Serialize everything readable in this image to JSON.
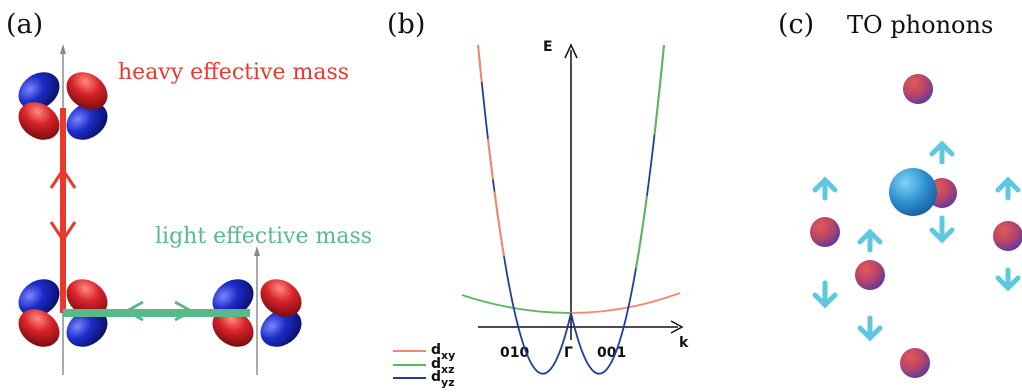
{
  "panel_a": {
    "label": "(a)",
    "heavy_text": "heavy effective mass",
    "light_text": "light effective mass",
    "colors": {
      "heavy": "#e8392b",
      "light": "#5ab98a",
      "lobe_red": "#d8242a",
      "lobe_blue": "#1c2cc8"
    }
  },
  "panel_b": {
    "label": "(b)",
    "axis_e": "E",
    "axis_k": "k",
    "tick_left": "010",
    "tick_center": "Γ",
    "tick_right": "001",
    "legend": [
      {
        "base": "d",
        "sub": "xy",
        "color": "#f08a6c"
      },
      {
        "base": "d",
        "sub": "xz",
        "color": "#5cb85c"
      },
      {
        "base": "d",
        "sub": "yz",
        "color": "#1f3f9e"
      }
    ]
  },
  "panel_c": {
    "label": "(c)",
    "title": "TO phonons",
    "colors": {
      "arrow": "#5ec8e0",
      "atom_small": "#c44a6a",
      "atom_large": "#2f8fd0"
    }
  }
}
